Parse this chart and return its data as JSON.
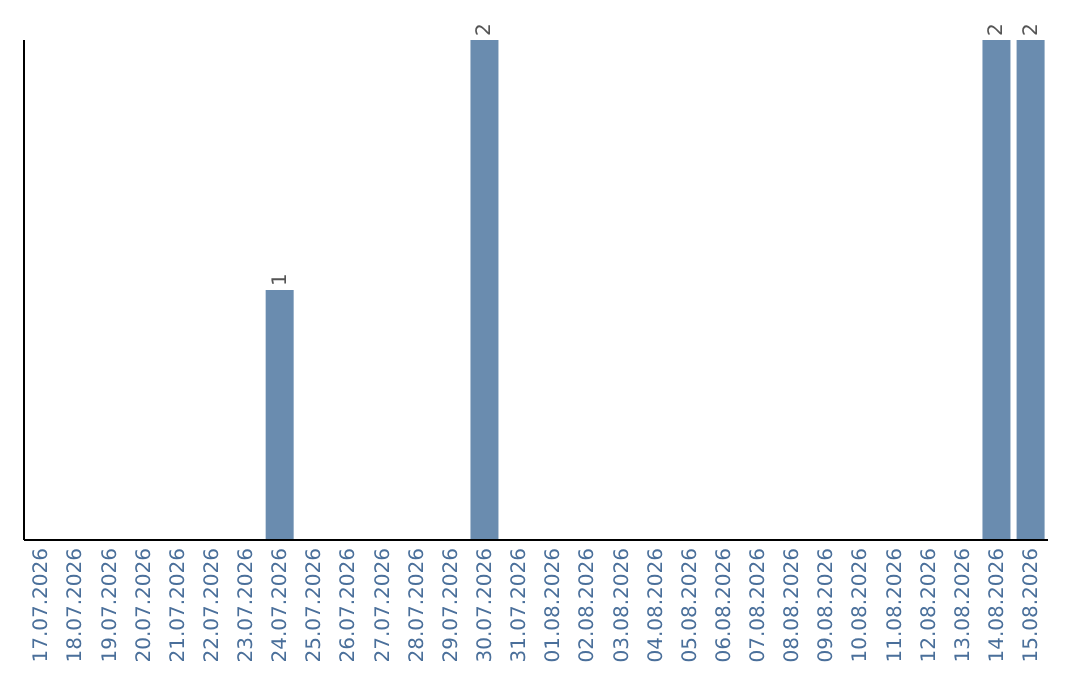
{
  "chart_data": {
    "type": "bar",
    "categories": [
      "17.07.2026",
      "18.07.2026",
      "19.07.2026",
      "20.07.2026",
      "21.07.2026",
      "22.07.2026",
      "23.07.2026",
      "24.07.2026",
      "25.07.2026",
      "26.07.2026",
      "27.07.2026",
      "28.07.2026",
      "29.07.2026",
      "30.07.2026",
      "31.07.2026",
      "01.08.2026",
      "02.08.2026",
      "03.08.2026",
      "04.08.2026",
      "05.08.2026",
      "06.08.2026",
      "07.08.2026",
      "08.08.2026",
      "09.08.2026",
      "10.08.2026",
      "11.08.2026",
      "12.08.2026",
      "13.08.2026",
      "14.08.2026",
      "15.08.2026"
    ],
    "values": [
      0,
      0,
      0,
      0,
      0,
      0,
      0,
      1,
      0,
      0,
      0,
      0,
      0,
      2,
      0,
      0,
      0,
      0,
      0,
      0,
      0,
      0,
      0,
      0,
      0,
      0,
      0,
      0,
      2,
      2
    ],
    "value_labels": [
      null,
      null,
      null,
      null,
      null,
      null,
      null,
      "1",
      null,
      null,
      null,
      null,
      null,
      "2",
      null,
      null,
      null,
      null,
      null,
      null,
      null,
      null,
      null,
      null,
      null,
      null,
      null,
      null,
      "2",
      "2"
    ],
    "color": "#6a8caf",
    "ylim": [
      0,
      2
    ],
    "tick_labels": "x"
  }
}
